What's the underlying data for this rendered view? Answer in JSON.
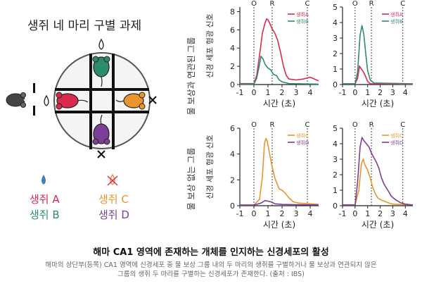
{
  "task_title": "생쥐 네 마리 구별 과제",
  "mice_legend": [
    {
      "label": "생쥐 A",
      "color": "#d9294f",
      "symbol": "water-drop-icon"
    },
    {
      "label": "생쥐 B",
      "color": "#2e8c6e",
      "symbol": "water-drop-icon"
    },
    {
      "label": "생쥐 C",
      "color": "#e8952d",
      "symbol": "no-water-icon"
    },
    {
      "label": "생쥐 D",
      "color": "#7a3f96",
      "symbol": "no-water-icon"
    }
  ],
  "colors": {
    "mouse_a": "#d9294f",
    "mouse_b": "#2e8c6e",
    "mouse_c": "#e8952d",
    "mouse_d": "#7a3f96",
    "water": "#3b7fc4"
  },
  "row_labels": {
    "rewarded": "물 보상과 연관된 그룹",
    "unrewarded": "물 보상 없는 그룹"
  },
  "chart_data": [
    {
      "type": "line",
      "position": "top-left",
      "ylabel": "신경 세포 형광 신호",
      "xlabel": "시간 (초)",
      "xlim": [
        -1,
        4.6
      ],
      "ylim": [
        0,
        8.5
      ],
      "xticks": [
        "-1",
        "0",
        "1",
        "2",
        "3",
        "4"
      ],
      "yticks": [
        "0",
        "2",
        "4",
        "6",
        "8"
      ],
      "markers": [
        {
          "label": "O",
          "x": 0
        },
        {
          "label": "R",
          "x": 1.3
        },
        {
          "label": "C",
          "x": 3.8
        }
      ],
      "series": [
        {
          "name": "생쥐A",
          "color": "#d9294f",
          "points": [
            [
              -1,
              0.1
            ],
            [
              -0.5,
              0.1
            ],
            [
              0,
              0.1
            ],
            [
              0.2,
              1.0
            ],
            [
              0.4,
              3.2
            ],
            [
              0.6,
              5.6
            ],
            [
              0.8,
              6.8
            ],
            [
              0.9,
              7.2
            ],
            [
              1.0,
              7.1
            ],
            [
              1.1,
              6.8
            ],
            [
              1.3,
              6.1
            ],
            [
              1.5,
              5.6
            ],
            [
              1.7,
              4.8
            ],
            [
              1.9,
              3.5
            ],
            [
              2.1,
              2.0
            ],
            [
              2.3,
              1.0
            ],
            [
              2.5,
              0.6
            ],
            [
              3.0,
              0.5
            ],
            [
              3.5,
              0.6
            ],
            [
              4.0,
              0.8
            ],
            [
              4.3,
              0.6
            ],
            [
              4.6,
              0.4
            ]
          ]
        },
        {
          "name": "생쥐B",
          "color": "#2e8c6e",
          "points": [
            [
              -1,
              0.05
            ],
            [
              0,
              0.05
            ],
            [
              0.2,
              0.7
            ],
            [
              0.4,
              2.2
            ],
            [
              0.5,
              3.1
            ],
            [
              0.65,
              2.8
            ],
            [
              0.8,
              2.2
            ],
            [
              1.0,
              1.8
            ],
            [
              1.2,
              1.6
            ],
            [
              1.4,
              1.1
            ],
            [
              1.6,
              1.0
            ],
            [
              1.8,
              0.5
            ],
            [
              2.0,
              0.3
            ],
            [
              2.5,
              0.1
            ],
            [
              4.6,
              0.05
            ]
          ]
        }
      ]
    },
    {
      "type": "line",
      "position": "top-right",
      "ylabel": "",
      "xlabel": "시간 (초)",
      "xlim": [
        -1,
        4.6
      ],
      "ylim": [
        0,
        5
      ],
      "xticks": [
        "-1",
        "0",
        "1",
        "2",
        "3",
        "4"
      ],
      "yticks": [
        "0",
        "1",
        "2",
        "3",
        "4",
        "5"
      ],
      "markers": [
        {
          "label": "O",
          "x": 0
        },
        {
          "label": "R",
          "x": 1.3
        },
        {
          "label": "C",
          "x": 3.8
        }
      ],
      "series": [
        {
          "name": "생쥐A",
          "color": "#d9294f",
          "points": [
            [
              -1,
              0.05
            ],
            [
              0,
              0.05
            ],
            [
              0.2,
              0.4
            ],
            [
              0.35,
              1.2
            ],
            [
              0.45,
              1.05
            ],
            [
              0.6,
              0.9
            ],
            [
              0.8,
              0.6
            ],
            [
              1.0,
              0.2
            ],
            [
              1.2,
              0.05
            ],
            [
              4.6,
              0.02
            ]
          ]
        },
        {
          "name": "생쥐B",
          "color": "#2e8c6e",
          "points": [
            [
              -1,
              0.05
            ],
            [
              0,
              0.05
            ],
            [
              0.2,
              0.8
            ],
            [
              0.4,
              3.2
            ],
            [
              0.55,
              3.8
            ],
            [
              0.7,
              3.2
            ],
            [
              0.85,
              2.0
            ],
            [
              1.0,
              0.9
            ],
            [
              1.2,
              0.3
            ],
            [
              1.5,
              0.1
            ],
            [
              4.6,
              0.05
            ]
          ]
        }
      ]
    },
    {
      "type": "line",
      "position": "bottom-left",
      "ylabel": "신경 세포 형광 신호",
      "xlabel": "시간 (초)",
      "xlim": [
        -1,
        4.6
      ],
      "ylim": [
        0,
        6
      ],
      "xticks": [
        "-1",
        "0",
        "1",
        "2",
        "3",
        "4"
      ],
      "yticks": [
        "0",
        "2",
        "4",
        "6"
      ],
      "markers": [
        {
          "label": "O",
          "x": 0
        },
        {
          "label": "R",
          "x": 1.3
        },
        {
          "label": "C",
          "x": 3.8
        }
      ],
      "series": [
        {
          "name": "생쥐C",
          "color": "#e8952d",
          "points": [
            [
              -1,
              0.05
            ],
            [
              0,
              0.05
            ],
            [
              0.4,
              0.5
            ],
            [
              0.6,
              2.2
            ],
            [
              0.75,
              4.8
            ],
            [
              0.85,
              5.2
            ],
            [
              0.95,
              5.0
            ],
            [
              1.1,
              4.1
            ],
            [
              1.3,
              3.0
            ],
            [
              1.5,
              2.1
            ],
            [
              1.8,
              1.3
            ],
            [
              2.0,
              1.2
            ],
            [
              2.2,
              1.0
            ],
            [
              2.5,
              0.6
            ],
            [
              2.8,
              0.3
            ],
            [
              3.2,
              0.2
            ],
            [
              4.0,
              0.15
            ],
            [
              4.6,
              0.1
            ]
          ]
        },
        {
          "name": "생쥐D",
          "color": "#7a3f96",
          "points": [
            [
              -1,
              0.05
            ],
            [
              0,
              0.05
            ],
            [
              0.5,
              0.2
            ],
            [
              0.8,
              0.4
            ],
            [
              1.0,
              0.35
            ],
            [
              1.2,
              0.3
            ],
            [
              1.5,
              0.15
            ],
            [
              2.0,
              0.1
            ],
            [
              4.6,
              0.05
            ]
          ]
        }
      ]
    },
    {
      "type": "line",
      "position": "bottom-right",
      "ylabel": "",
      "xlabel": "시간 (초)",
      "xlim": [
        -1,
        4.6
      ],
      "ylim": [
        0,
        5
      ],
      "xticks": [
        "-1",
        "0",
        "1",
        "2",
        "3",
        "4"
      ],
      "yticks": [
        "0",
        "1",
        "2",
        "3",
        "4",
        "5"
      ],
      "markers": [
        {
          "label": "O",
          "x": 0
        },
        {
          "label": "R",
          "x": 1.3
        },
        {
          "label": "C",
          "x": 3.8
        }
      ],
      "series": [
        {
          "name": "생쥐C",
          "color": "#e8952d",
          "points": [
            [
              -1,
              0.05
            ],
            [
              0,
              0.05
            ],
            [
              0.3,
              1.0
            ],
            [
              0.5,
              2.7
            ],
            [
              0.65,
              3.0
            ],
            [
              0.8,
              2.6
            ],
            [
              1.0,
              2.3
            ],
            [
              1.2,
              1.8
            ],
            [
              1.4,
              1.2
            ],
            [
              1.6,
              0.8
            ],
            [
              1.8,
              0.5
            ],
            [
              2.0,
              0.4
            ],
            [
              2.3,
              0.3
            ],
            [
              2.6,
              0.2
            ],
            [
              3.0,
              0.1
            ],
            [
              4.6,
              0.05
            ]
          ]
        },
        {
          "name": "생쥐D",
          "color": "#7a3f96",
          "points": [
            [
              -1,
              0.05
            ],
            [
              0,
              0.05
            ],
            [
              0.2,
              1.5
            ],
            [
              0.4,
              3.8
            ],
            [
              0.55,
              4.4
            ],
            [
              0.7,
              4.2
            ],
            [
              0.9,
              4.0
            ],
            [
              1.1,
              3.8
            ],
            [
              1.3,
              3.4
            ],
            [
              1.5,
              3.1
            ],
            [
              1.7,
              2.8
            ],
            [
              1.9,
              2.4
            ],
            [
              2.1,
              1.8
            ],
            [
              2.3,
              1.4
            ],
            [
              2.6,
              1.0
            ],
            [
              2.9,
              0.6
            ],
            [
              3.2,
              0.4
            ],
            [
              3.6,
              0.2
            ],
            [
              4.0,
              0.1
            ],
            [
              4.6,
              0.05
            ]
          ]
        }
      ]
    }
  ],
  "caption": {
    "title": "해마 CA1 영역에 존재하는 개체를 인지하는 신경세포의 활성",
    "line1": "해마의 상단부(등쪽) CA1 영역에 신경세포 중 물 보상 그룹 내의 두 마리의 생쥐를 구별하거나 물 보상과 연관되지 않은",
    "line2": "그룹의 생쥐 두 마리를 구별하는 신경세포가 존재한다. (출처 : IBS)"
  }
}
